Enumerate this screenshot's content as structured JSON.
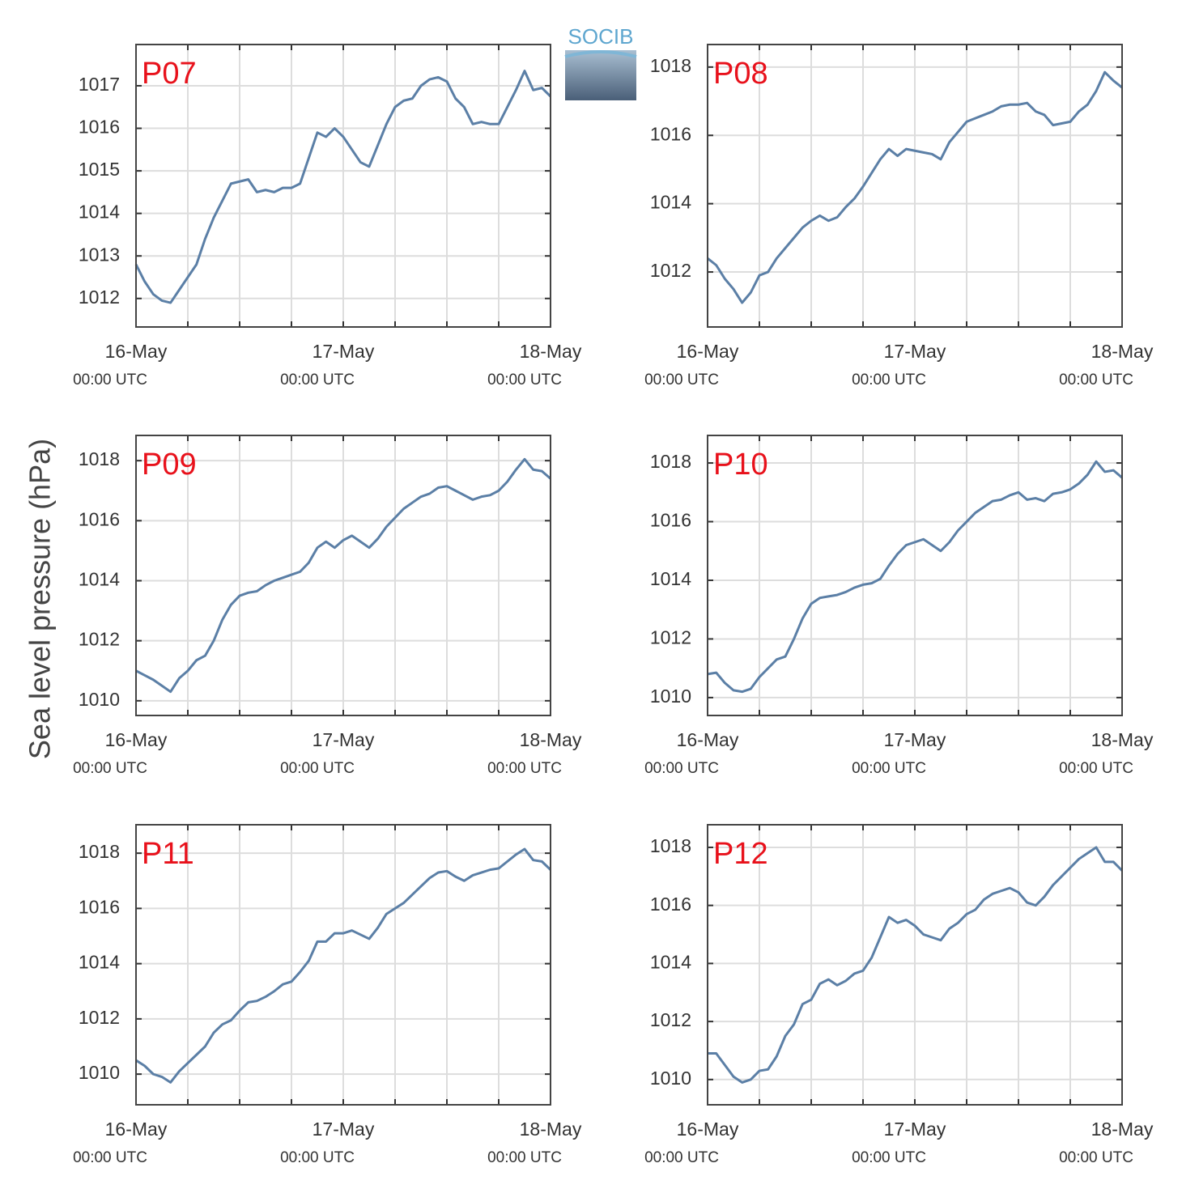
{
  "ylabel": "Sea level pressure (hPa)",
  "logo": "SOCIB",
  "chart_data": [
    {
      "type": "line",
      "title": "P07",
      "color": "#5b7fa6",
      "grid": true,
      "x": [
        0,
        1,
        2,
        3,
        4,
        5,
        6,
        7,
        8,
        9,
        10,
        11,
        12,
        13,
        14,
        15,
        16,
        17,
        18,
        19,
        20,
        21,
        22,
        23,
        24,
        25,
        26,
        27,
        28,
        29,
        30,
        31,
        32,
        33,
        34,
        35,
        36,
        37,
        38,
        39,
        40,
        41,
        42,
        43,
        44,
        45,
        46,
        47,
        48
      ],
      "values": [
        1012.8,
        1012.4,
        1012.1,
        1011.95,
        1011.9,
        1012.2,
        1012.5,
        1012.8,
        1013.4,
        1013.9,
        1014.3,
        1014.7,
        1014.75,
        1014.8,
        1014.5,
        1014.55,
        1014.5,
        1014.6,
        1014.6,
        1014.7,
        1015.3,
        1015.9,
        1015.8,
        1016.0,
        1015.8,
        1015.5,
        1015.2,
        1015.1,
        1015.6,
        1016.1,
        1016.5,
        1016.65,
        1016.7,
        1017.0,
        1017.15,
        1017.2,
        1017.1,
        1016.7,
        1016.5,
        1016.1,
        1016.15,
        1016.1,
        1016.1,
        1016.5,
        1016.9,
        1017.35,
        1016.9,
        1016.95,
        1016.75
      ],
      "xlim": [
        0,
        48
      ],
      "xticks": [
        {
          "value": 0,
          "label": "16-May",
          "sublabel": "00:00 UTC"
        },
        {
          "value": 24,
          "label": "17-May",
          "sublabel": "00:00 UTC"
        },
        {
          "value": 48,
          "label": "18-May",
          "sublabel": "00:00 UTC"
        }
      ],
      "xminor": [
        6,
        12,
        18,
        30,
        36,
        42
      ],
      "ylim": [
        1011.33,
        1017.97
      ],
      "yticks": [
        1012,
        1013,
        1014,
        1015,
        1016,
        1017
      ]
    },
    {
      "type": "line",
      "title": "P08",
      "color": "#5b7fa6",
      "grid": true,
      "x": [
        0,
        1,
        2,
        3,
        4,
        5,
        6,
        7,
        8,
        9,
        10,
        11,
        12,
        13,
        14,
        15,
        16,
        17,
        18,
        19,
        20,
        21,
        22,
        23,
        24,
        25,
        26,
        27,
        28,
        29,
        30,
        31,
        32,
        33,
        34,
        35,
        36,
        37,
        38,
        39,
        40,
        41,
        42,
        43,
        44,
        45,
        46,
        47,
        48
      ],
      "values": [
        1012.4,
        1012.2,
        1011.8,
        1011.5,
        1011.1,
        1011.4,
        1011.9,
        1012.0,
        1012.4,
        1012.7,
        1013.0,
        1013.3,
        1013.5,
        1013.65,
        1013.5,
        1013.6,
        1013.9,
        1014.15,
        1014.5,
        1014.9,
        1015.3,
        1015.6,
        1015.4,
        1015.6,
        1015.55,
        1015.5,
        1015.45,
        1015.3,
        1015.8,
        1016.1,
        1016.4,
        1016.5,
        1016.6,
        1016.7,
        1016.85,
        1016.9,
        1016.9,
        1016.95,
        1016.7,
        1016.6,
        1016.3,
        1016.35,
        1016.4,
        1016.7,
        1016.9,
        1017.3,
        1017.85,
        1017.6,
        1017.4
      ],
      "xlim": [
        0,
        48
      ],
      "xticks": [
        {
          "value": 0,
          "label": "16-May",
          "sublabel": "00:00 UTC"
        },
        {
          "value": 24,
          "label": "17-May",
          "sublabel": "00:00 UTC"
        },
        {
          "value": 48,
          "label": "18-May",
          "sublabel": "00:00 UTC"
        }
      ],
      "xminor": [
        6,
        12,
        18,
        30,
        36,
        42
      ],
      "ylim": [
        1010.39,
        1018.66
      ],
      "yticks": [
        1012,
        1014,
        1016,
        1018
      ]
    },
    {
      "type": "line",
      "title": "P09",
      "color": "#5b7fa6",
      "grid": true,
      "x": [
        0,
        1,
        2,
        3,
        4,
        5,
        6,
        7,
        8,
        9,
        10,
        11,
        12,
        13,
        14,
        15,
        16,
        17,
        18,
        19,
        20,
        21,
        22,
        23,
        24,
        25,
        26,
        27,
        28,
        29,
        30,
        31,
        32,
        33,
        34,
        35,
        36,
        37,
        38,
        39,
        40,
        41,
        42,
        43,
        44,
        45,
        46,
        47,
        48
      ],
      "values": [
        1011.0,
        1010.85,
        1010.7,
        1010.5,
        1010.3,
        1010.75,
        1011.0,
        1011.35,
        1011.5,
        1012.0,
        1012.7,
        1013.2,
        1013.5,
        1013.6,
        1013.65,
        1013.85,
        1014.0,
        1014.1,
        1014.2,
        1014.3,
        1014.6,
        1015.1,
        1015.3,
        1015.1,
        1015.35,
        1015.5,
        1015.3,
        1015.1,
        1015.4,
        1015.8,
        1016.1,
        1016.4,
        1016.6,
        1016.8,
        1016.9,
        1017.1,
        1017.15,
        1017.0,
        1016.85,
        1016.7,
        1016.8,
        1016.85,
        1017.0,
        1017.3,
        1017.7,
        1018.05,
        1017.7,
        1017.65,
        1017.4
      ],
      "xlim": [
        0,
        48
      ],
      "xticks": [
        {
          "value": 0,
          "label": "16-May",
          "sublabel": "00:00 UTC"
        },
        {
          "value": 24,
          "label": "17-May",
          "sublabel": "00:00 UTC"
        },
        {
          "value": 48,
          "label": "18-May",
          "sublabel": "00:00 UTC"
        }
      ],
      "xminor": [
        6,
        12,
        18,
        30,
        36,
        42
      ],
      "ylim": [
        1009.51,
        1018.84
      ],
      "yticks": [
        1010,
        1012,
        1014,
        1016,
        1018
      ]
    },
    {
      "type": "line",
      "title": "P10",
      "color": "#5b7fa6",
      "grid": true,
      "x": [
        0,
        1,
        2,
        3,
        4,
        5,
        6,
        7,
        8,
        9,
        10,
        11,
        12,
        13,
        14,
        15,
        16,
        17,
        18,
        19,
        20,
        21,
        22,
        23,
        24,
        25,
        26,
        27,
        28,
        29,
        30,
        31,
        32,
        33,
        34,
        35,
        36,
        37,
        38,
        39,
        40,
        41,
        42,
        43,
        44,
        45,
        46,
        47,
        48
      ],
      "values": [
        1010.8,
        1010.85,
        1010.5,
        1010.25,
        1010.2,
        1010.3,
        1010.7,
        1011.0,
        1011.3,
        1011.4,
        1012.0,
        1012.7,
        1013.2,
        1013.4,
        1013.45,
        1013.5,
        1013.6,
        1013.75,
        1013.85,
        1013.9,
        1014.05,
        1014.5,
        1014.9,
        1015.2,
        1015.3,
        1015.4,
        1015.2,
        1015.0,
        1015.3,
        1015.7,
        1016.0,
        1016.3,
        1016.5,
        1016.7,
        1016.75,
        1016.9,
        1017.0,
        1016.75,
        1016.8,
        1016.7,
        1016.95,
        1017.0,
        1017.1,
        1017.3,
        1017.6,
        1018.05,
        1017.7,
        1017.75,
        1017.5
      ],
      "xlim": [
        0,
        48
      ],
      "xticks": [
        {
          "value": 0,
          "label": "16-May",
          "sublabel": "00:00 UTC"
        },
        {
          "value": 24,
          "label": "17-May",
          "sublabel": "00:00 UTC"
        },
        {
          "value": 48,
          "label": "18-May",
          "sublabel": "00:00 UTC"
        }
      ],
      "xminor": [
        6,
        12,
        18,
        30,
        36,
        42
      ],
      "ylim": [
        1009.39,
        1018.94
      ],
      "yticks": [
        1010,
        1012,
        1014,
        1016,
        1018
      ]
    },
    {
      "type": "line",
      "title": "P11",
      "color": "#5b7fa6",
      "grid": true,
      "x": [
        0,
        1,
        2,
        3,
        4,
        5,
        6,
        7,
        8,
        9,
        10,
        11,
        12,
        13,
        14,
        15,
        16,
        17,
        18,
        19,
        20,
        21,
        22,
        23,
        24,
        25,
        26,
        27,
        28,
        29,
        30,
        31,
        32,
        33,
        34,
        35,
        36,
        37,
        38,
        39,
        40,
        41,
        42,
        43,
        44,
        45,
        46,
        47,
        48
      ],
      "values": [
        1010.5,
        1010.3,
        1010.0,
        1009.9,
        1009.7,
        1010.1,
        1010.4,
        1010.7,
        1011.0,
        1011.5,
        1011.8,
        1011.95,
        1012.3,
        1012.6,
        1012.65,
        1012.8,
        1013.0,
        1013.25,
        1013.35,
        1013.7,
        1014.1,
        1014.8,
        1014.8,
        1015.1,
        1015.1,
        1015.2,
        1015.05,
        1014.9,
        1015.3,
        1015.8,
        1016.0,
        1016.2,
        1016.5,
        1016.8,
        1017.1,
        1017.3,
        1017.35,
        1017.15,
        1017.0,
        1017.2,
        1017.3,
        1017.4,
        1017.45,
        1017.7,
        1017.95,
        1018.15,
        1017.75,
        1017.7,
        1017.4
      ],
      "xlim": [
        0,
        48
      ],
      "xticks": [
        {
          "value": 0,
          "label": "16-May",
          "sublabel": "00:00 UTC"
        },
        {
          "value": 24,
          "label": "17-May",
          "sublabel": "00:00 UTC"
        },
        {
          "value": 48,
          "label": "18-May",
          "sublabel": "00:00 UTC"
        }
      ],
      "xminor": [
        6,
        12,
        18,
        30,
        36,
        42
      ],
      "ylim": [
        1008.89,
        1019.03
      ],
      "yticks": [
        1010,
        1012,
        1014,
        1016,
        1018
      ]
    },
    {
      "type": "line",
      "title": "P12",
      "color": "#5b7fa6",
      "grid": true,
      "x": [
        0,
        1,
        2,
        3,
        4,
        5,
        6,
        7,
        8,
        9,
        10,
        11,
        12,
        13,
        14,
        15,
        16,
        17,
        18,
        19,
        20,
        21,
        22,
        23,
        24,
        25,
        26,
        27,
        28,
        29,
        30,
        31,
        32,
        33,
        34,
        35,
        36,
        37,
        38,
        39,
        40,
        41,
        42,
        43,
        44,
        45,
        46,
        47,
        48
      ],
      "values": [
        1010.9,
        1010.9,
        1010.5,
        1010.1,
        1009.9,
        1010.0,
        1010.3,
        1010.35,
        1010.8,
        1011.5,
        1011.9,
        1012.6,
        1012.75,
        1013.3,
        1013.45,
        1013.25,
        1013.4,
        1013.65,
        1013.75,
        1014.2,
        1014.9,
        1015.6,
        1015.4,
        1015.5,
        1015.3,
        1015.0,
        1014.9,
        1014.8,
        1015.2,
        1015.4,
        1015.7,
        1015.85,
        1016.2,
        1016.4,
        1016.5,
        1016.6,
        1016.45,
        1016.1,
        1016.0,
        1016.3,
        1016.7,
        1017.0,
        1017.3,
        1017.6,
        1017.8,
        1018.0,
        1017.5,
        1017.5,
        1017.2
      ],
      "xlim": [
        0,
        48
      ],
      "xticks": [
        {
          "value": 0,
          "label": "16-May",
          "sublabel": "00:00 UTC"
        },
        {
          "value": 24,
          "label": "17-May",
          "sublabel": "00:00 UTC"
        },
        {
          "value": 48,
          "label": "18-May",
          "sublabel": "00:00 UTC"
        }
      ],
      "xminor": [
        6,
        12,
        18,
        30,
        36,
        42
      ],
      "ylim": [
        1009.13,
        1018.78
      ],
      "yticks": [
        1010,
        1012,
        1014,
        1016,
        1018
      ]
    }
  ]
}
